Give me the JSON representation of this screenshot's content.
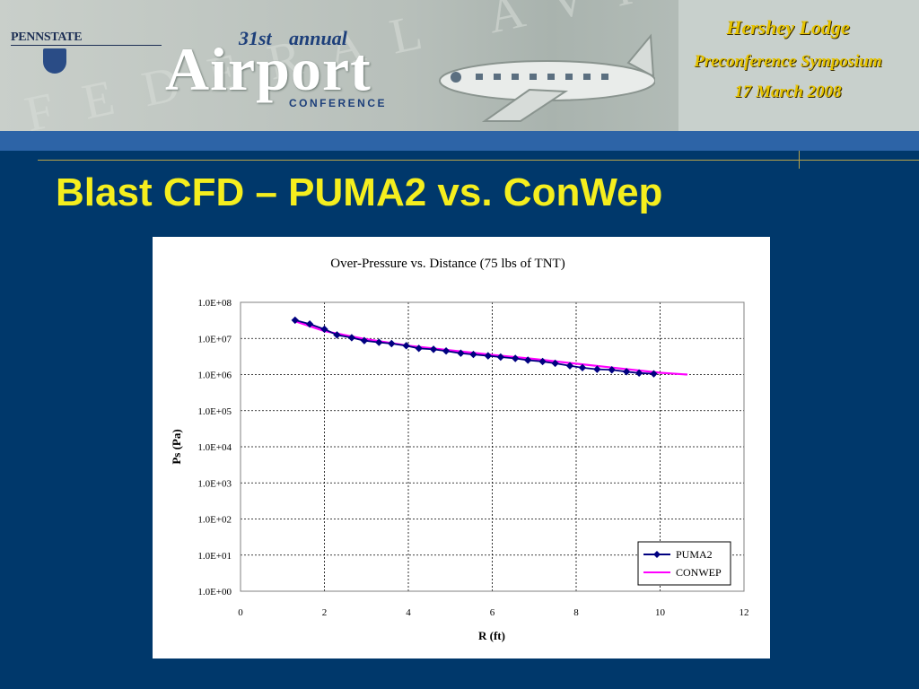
{
  "header": {
    "pennstate_label": "PENNSTATE",
    "conference": {
      "ordinal": "31st",
      "annual": "annual",
      "name": "Airport",
      "subtitle": "CONFERENCE"
    },
    "event": {
      "line1": "Hershey Lodge",
      "line2": "Preconference Symposium",
      "line3": "17 March 2008"
    }
  },
  "slide": {
    "title": "Blast CFD – PUMA2 vs. ConWep"
  },
  "colors": {
    "background": "#00386b",
    "title": "#f5ee1e",
    "event_text": "#e6c300",
    "puma2": "#000080",
    "conwep": "#ff00ff"
  },
  "chart_data": {
    "type": "scatter",
    "title": "Over-Pressure vs. Distance (75 lbs of TNT)",
    "xlabel": "R (ft)",
    "ylabel": "Ps (Pa)",
    "xlim": [
      0,
      12
    ],
    "ylim": [
      1,
      100000000
    ],
    "y_scale": "log",
    "x_ticks": [
      0,
      2,
      4,
      6,
      8,
      10,
      12
    ],
    "y_ticks": [
      "1.0E+00",
      "1.0E+01",
      "1.0E+02",
      "1.0E+03",
      "1.0E+04",
      "1.0E+05",
      "1.0E+06",
      "1.0E+07",
      "1.0E+08"
    ],
    "grid": true,
    "legend": "bottom-right",
    "series": [
      {
        "name": "PUMA2",
        "marker": "diamond",
        "color": "#000080",
        "x": [
          1.3,
          1.65,
          2.0,
          2.3,
          2.65,
          2.95,
          3.3,
          3.6,
          3.95,
          4.25,
          4.6,
          4.9,
          5.25,
          5.55,
          5.9,
          6.2,
          6.55,
          6.85,
          7.2,
          7.5,
          7.85,
          8.15,
          8.5,
          8.85,
          9.2,
          9.5,
          9.85
        ],
        "y": [
          32000000,
          25000000,
          18000000,
          12500000,
          10500000,
          8700000,
          7800000,
          7200000,
          6300000,
          5300000,
          5000000,
          4500000,
          3900000,
          3600000,
          3300000,
          3050000,
          2800000,
          2500000,
          2300000,
          2050000,
          1750000,
          1550000,
          1400000,
          1350000,
          1200000,
          1100000,
          1050000
        ]
      },
      {
        "name": "CONWEP",
        "marker": "none",
        "color": "#ff00ff",
        "x": [
          1.3,
          2.0,
          3.0,
          4.0,
          5.0,
          6.0,
          7.0,
          8.0,
          9.0,
          10.0,
          10.65
        ],
        "y": [
          30000000,
          16000000,
          9500000,
          6300000,
          4700000,
          3500000,
          2700000,
          2000000,
          1500000,
          1120000,
          1000000
        ]
      }
    ]
  }
}
